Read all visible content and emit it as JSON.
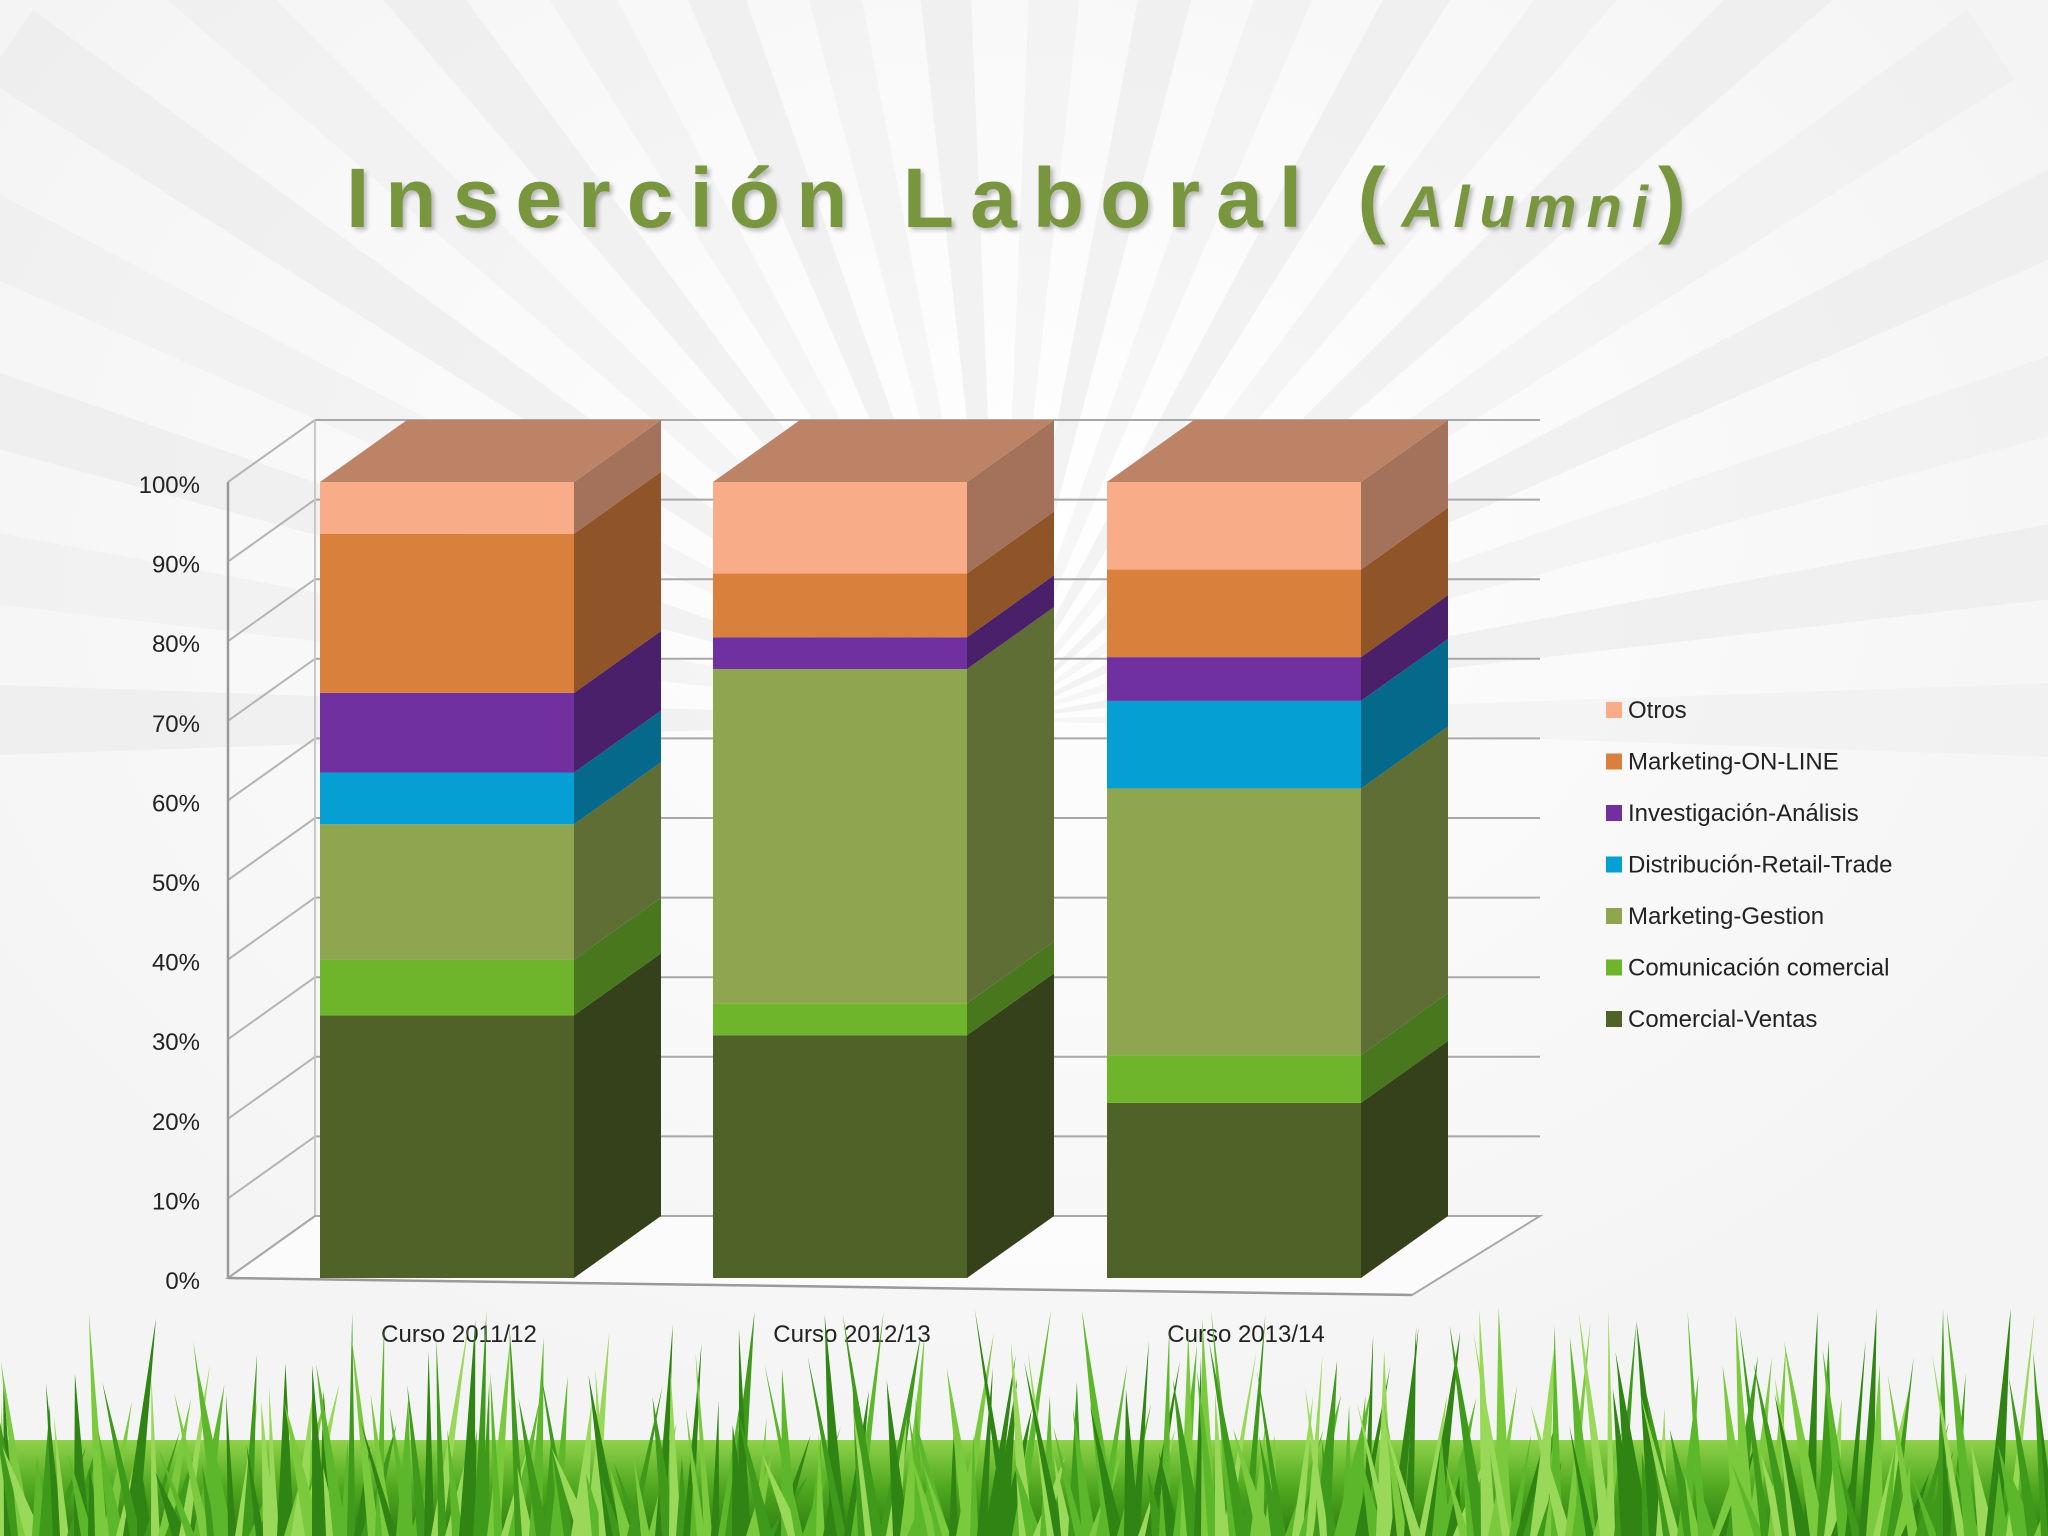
{
  "slide": {
    "title_main": "Inserción Laboral",
    "title_paren_open": "(",
    "title_sub": "Alumni",
    "title_paren_close": ")"
  },
  "colors": {
    "title": "#78963e",
    "Comercial-Ventas": "#4f6228",
    "Comunicación comercial": "#6fb52c",
    "Marketing-Gestion": "#8ea64f",
    "Distribución-Retail-Trade": "#069fd3",
    "Investigación-Análisis": "#7030a0",
    "Marketing-ON-LINE": "#d9813c",
    "Otros": "#f8ad88"
  },
  "chart_data": {
    "type": "bar",
    "stacked": true,
    "percent": true,
    "style": "3d-column",
    "categories": [
      "Curso 2011/12",
      "Curso 2012/13",
      "Curso 2013/14"
    ],
    "series": [
      {
        "name": "Comercial-Ventas",
        "values": [
          33,
          30.5,
          22
        ]
      },
      {
        "name": "Comunicación comercial",
        "values": [
          7,
          4,
          6
        ]
      },
      {
        "name": "Marketing-Gestion",
        "values": [
          17,
          42,
          33.5
        ]
      },
      {
        "name": "Distribución-Retail-Trade",
        "values": [
          6.5,
          0,
          11
        ]
      },
      {
        "name": "Investigación-Análisis",
        "values": [
          10,
          4,
          5.5
        ]
      },
      {
        "name": "Marketing-ON-LINE",
        "values": [
          20,
          8,
          11
        ]
      },
      {
        "name": "Otros",
        "values": [
          6.5,
          11.5,
          11
        ]
      }
    ],
    "ylim": [
      0,
      100
    ],
    "yticks": [
      "0%",
      "10%",
      "20%",
      "30%",
      "40%",
      "50%",
      "60%",
      "70%",
      "80%",
      "90%",
      "100%"
    ],
    "grid": true,
    "legend_position": "right",
    "legend_order": [
      "Otros",
      "Marketing-ON-LINE",
      "Investigación-Análisis",
      "Distribución-Retail-Trade",
      "Marketing-Gestion",
      "Comunicación comercial",
      "Comercial-Ventas"
    ]
  }
}
